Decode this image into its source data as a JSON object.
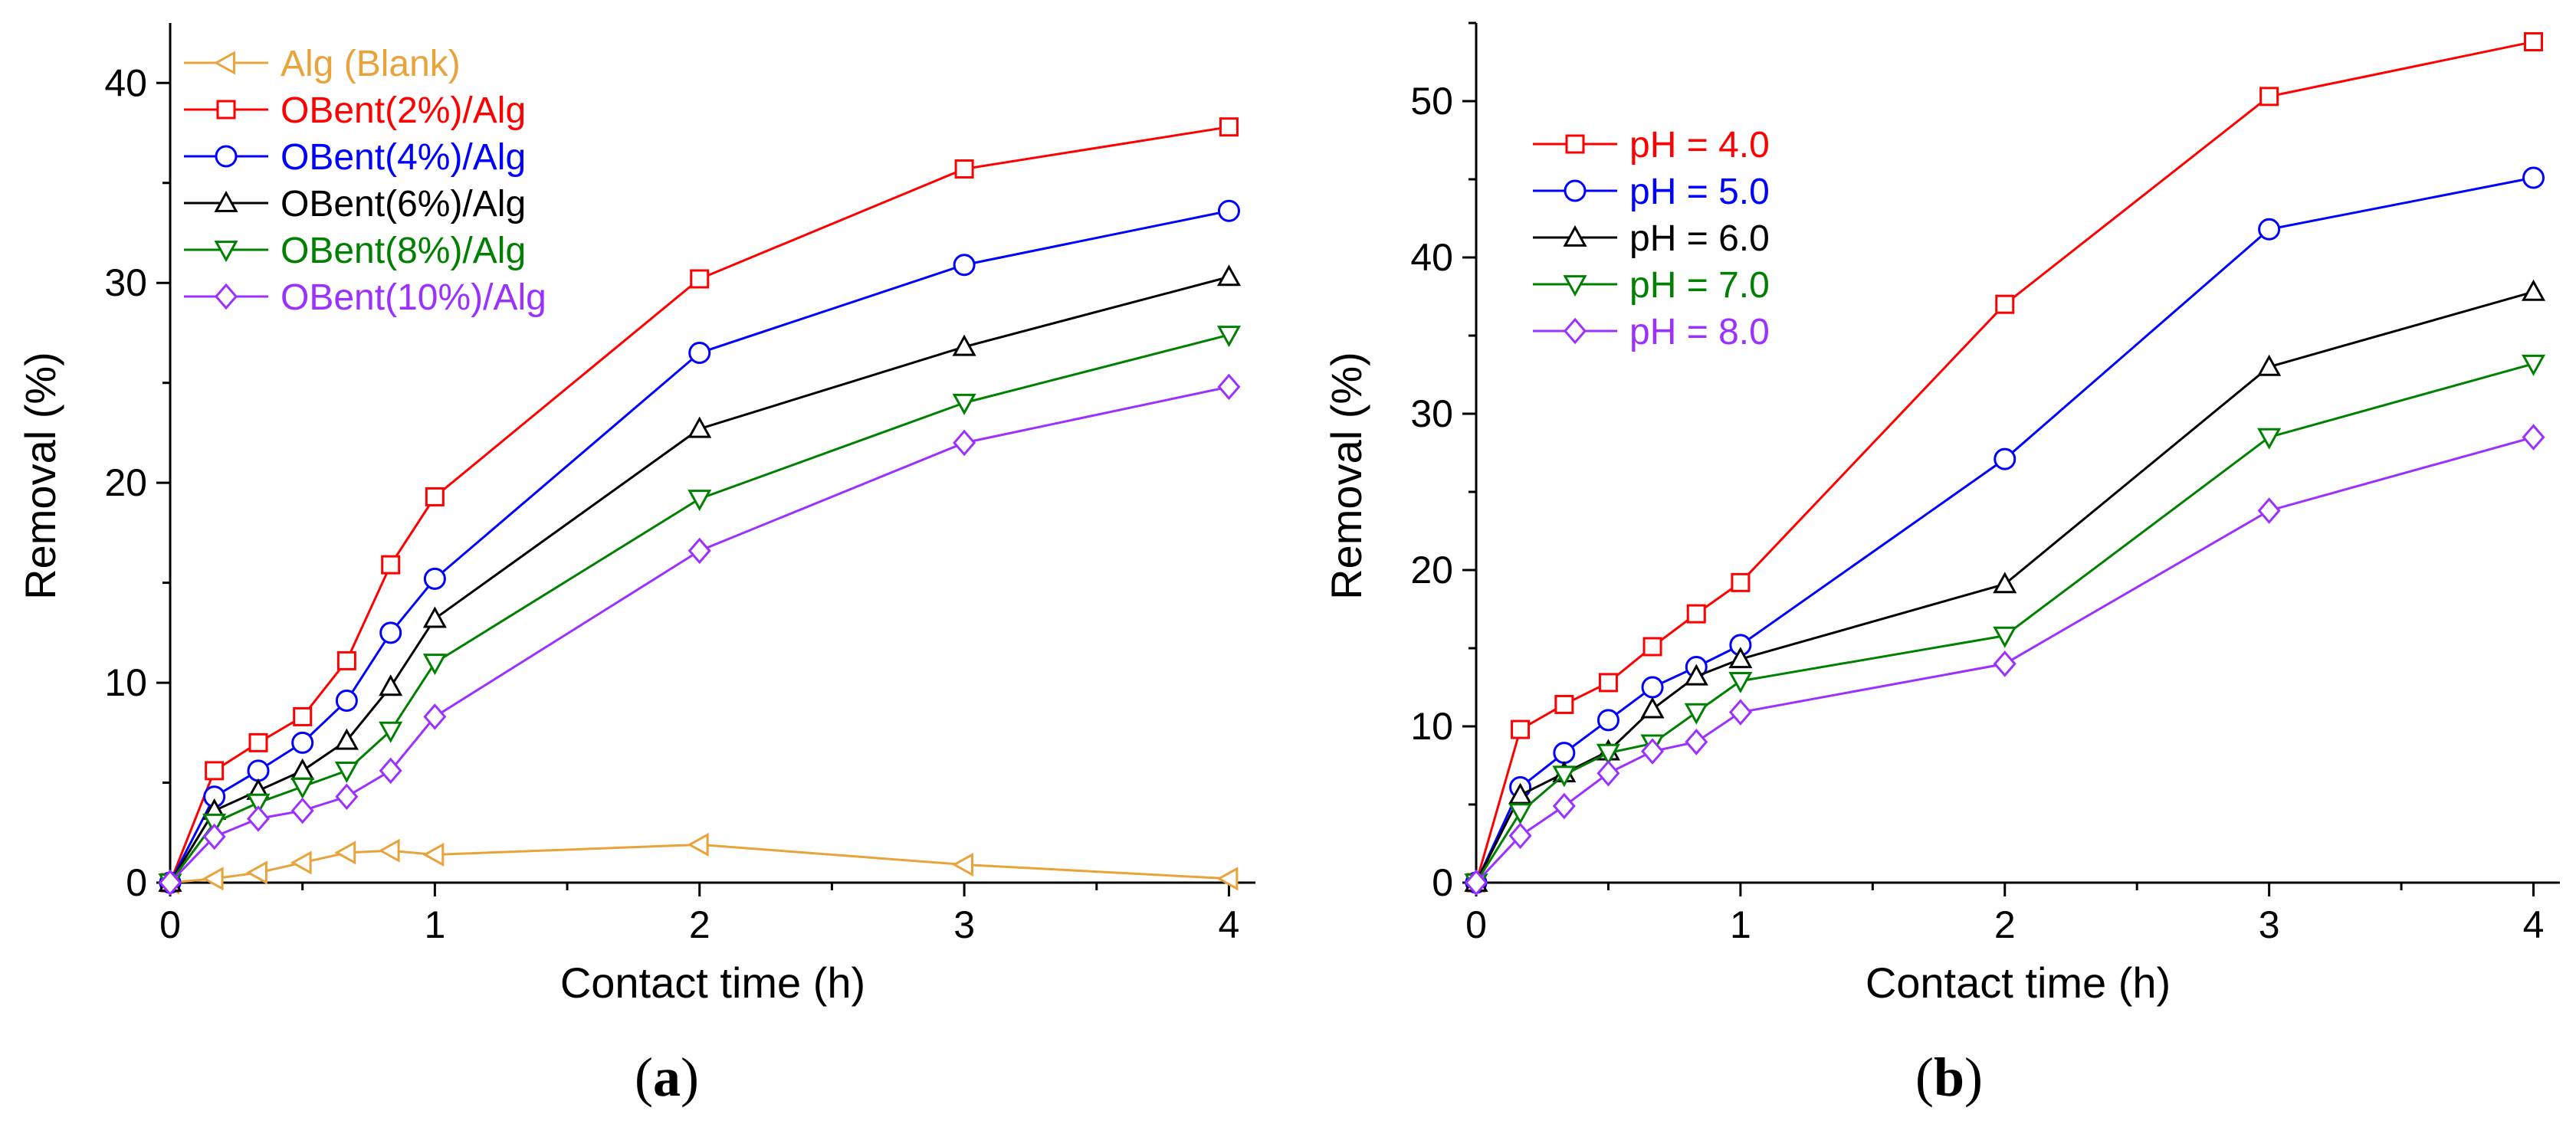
{
  "figure": {
    "panel_a_label": "a",
    "panel_b_label": "b"
  },
  "chart_data": [
    {
      "type": "line",
      "panel": "a",
      "title": "",
      "xlabel": "Contact time (h)",
      "ylabel": "Removal (%)",
      "xlim": [
        0,
        4.1
      ],
      "ylim": [
        0,
        43
      ],
      "xticks": [
        0,
        1,
        2,
        3,
        4
      ],
      "yticks": [
        0,
        10,
        20,
        30,
        40
      ],
      "xtick_labels": [
        "0",
        "1",
        "2",
        "3",
        "4"
      ],
      "ytick_labels": [
        "0",
        "10",
        "20",
        "30",
        "40"
      ],
      "grid": false,
      "legend_position": "top-left",
      "x": [
        0,
        0.167,
        0.333,
        0.5,
        0.667,
        0.833,
        1,
        2,
        3,
        4
      ],
      "series": [
        {
          "name": "Alg (Blank)",
          "color": "#e8a33a",
          "marker": "triangle-left",
          "values": [
            0,
            0.2,
            0.5,
            1.0,
            1.5,
            1.6,
            1.4,
            1.9,
            0.9,
            0.2
          ]
        },
        {
          "name": "OBent(2%)/Alg",
          "color": "#ff0000",
          "marker": "square",
          "values": [
            0,
            5.6,
            7.0,
            8.3,
            11.1,
            15.9,
            19.3,
            30.2,
            35.7,
            37.8
          ]
        },
        {
          "name": "OBent(4%)/Alg",
          "color": "#0000ff",
          "marker": "circle",
          "values": [
            0,
            4.3,
            5.6,
            7.0,
            9.1,
            12.5,
            15.2,
            26.5,
            30.9,
            33.6
          ]
        },
        {
          "name": "OBent(6%)/Alg",
          "color": "#000000",
          "marker": "triangle-up",
          "values": [
            0,
            3.6,
            4.6,
            5.6,
            7.1,
            9.8,
            13.2,
            22.7,
            26.8,
            30.3
          ]
        },
        {
          "name": "OBent(8%)/Alg",
          "color": "#008000",
          "marker": "triangle-down",
          "values": [
            0,
            3.0,
            4.0,
            4.8,
            5.6,
            7.6,
            11.0,
            19.2,
            24.0,
            27.4
          ]
        },
        {
          "name": "OBent(10%)/Alg",
          "color": "#9b30ff",
          "marker": "diamond",
          "values": [
            0,
            2.3,
            3.2,
            3.6,
            4.3,
            5.6,
            8.3,
            16.6,
            22.0,
            24.8
          ]
        }
      ]
    },
    {
      "type": "line",
      "panel": "b",
      "title": "",
      "xlabel": "Contact time (h)",
      "ylabel": "Removal (%)",
      "xlim": [
        0,
        4.1
      ],
      "ylim": [
        0,
        55
      ],
      "xticks": [
        0,
        1,
        2,
        3,
        4
      ],
      "yticks": [
        0,
        10,
        20,
        30,
        40,
        50
      ],
      "xtick_labels": [
        "0",
        "1",
        "2",
        "3",
        "4"
      ],
      "ytick_labels": [
        "0",
        "10",
        "20",
        "30",
        "40",
        "50"
      ],
      "grid": false,
      "legend_position": "top-left",
      "x": [
        0,
        0.167,
        0.333,
        0.5,
        0.667,
        0.833,
        1,
        2,
        3,
        4
      ],
      "series": [
        {
          "name": "pH = 4.0",
          "color": "#ff0000",
          "marker": "square",
          "values": [
            0,
            9.8,
            11.4,
            12.8,
            15.1,
            17.2,
            19.2,
            37.0,
            50.3,
            53.8
          ]
        },
        {
          "name": "pH = 5.0",
          "color": "#0000ff",
          "marker": "circle",
          "values": [
            0,
            6.1,
            8.3,
            10.4,
            12.5,
            13.8,
            15.2,
            27.1,
            41.8,
            45.1
          ]
        },
        {
          "name": "pH = 6.0",
          "color": "#000000",
          "marker": "triangle-up",
          "values": [
            0,
            5.6,
            7.0,
            8.4,
            11.1,
            13.2,
            14.3,
            19.1,
            33.0,
            37.8
          ]
        },
        {
          "name": "pH = 7.0",
          "color": "#008000",
          "marker": "triangle-down",
          "values": [
            0,
            4.5,
            6.9,
            8.3,
            8.9,
            10.9,
            12.9,
            15.8,
            28.5,
            33.2
          ]
        },
        {
          "name": "pH = 8.0",
          "color": "#9b30ff",
          "marker": "diamond",
          "values": [
            0,
            3.0,
            4.9,
            7.0,
            8.4,
            9.0,
            10.9,
            14.0,
            23.8,
            28.5
          ]
        }
      ]
    }
  ]
}
